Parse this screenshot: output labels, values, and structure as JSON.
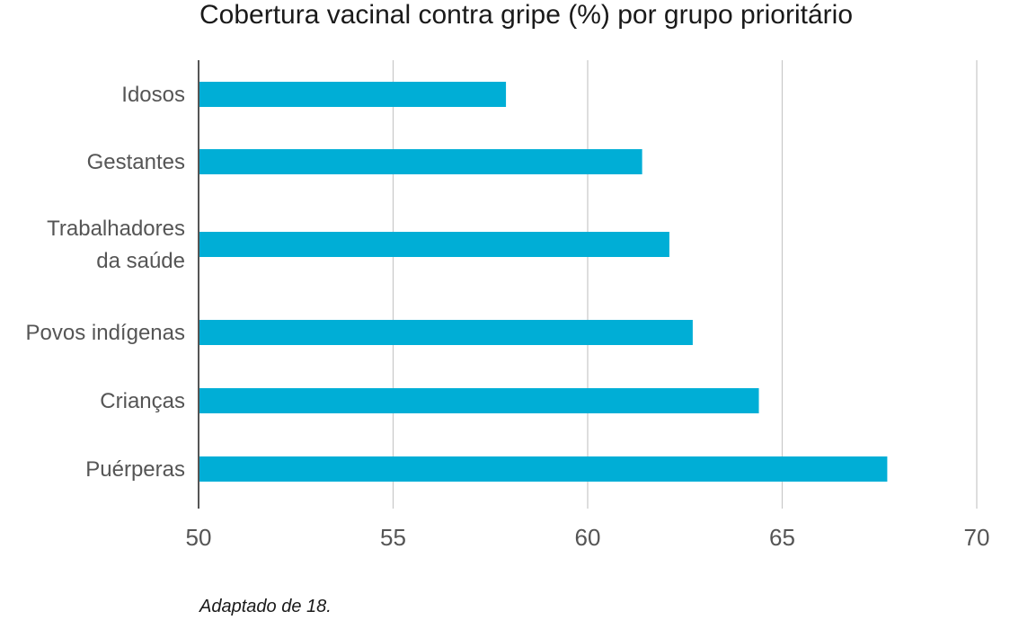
{
  "chart_data": {
    "type": "bar",
    "orientation": "horizontal",
    "title": "Cobertura vacinal contra gripe (%) por grupo prioritário",
    "source_note": "Adaptado de 18.",
    "categories": [
      [
        "Idosos"
      ],
      [
        "Gestantes"
      ],
      [
        "Trabalhadores",
        "da saúde"
      ],
      [
        "Povos indígenas"
      ],
      [
        "Crianças"
      ],
      [
        "Puérperas"
      ]
    ],
    "values": [
      57.9,
      61.4,
      62.1,
      62.7,
      64.4,
      67.7
    ],
    "xlim": [
      50,
      70
    ],
    "xticks": [
      50,
      55,
      60,
      65,
      70
    ],
    "grid": "vertical",
    "bar_color": "#00AED6"
  }
}
